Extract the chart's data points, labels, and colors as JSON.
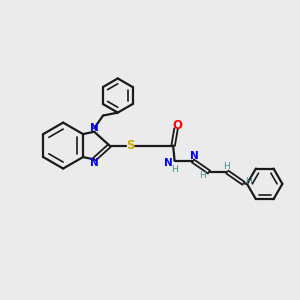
{
  "background_color": "#ebebeb",
  "bond_color": "#1a1a1a",
  "N_color": "#0000ff",
  "S_color": "#ccaa00",
  "O_color": "#ff0000",
  "H_color": "#4a9090",
  "figsize": [
    3.0,
    3.0
  ],
  "dpi": 100,
  "xlim": [
    0,
    10
  ],
  "ylim": [
    0,
    10
  ]
}
